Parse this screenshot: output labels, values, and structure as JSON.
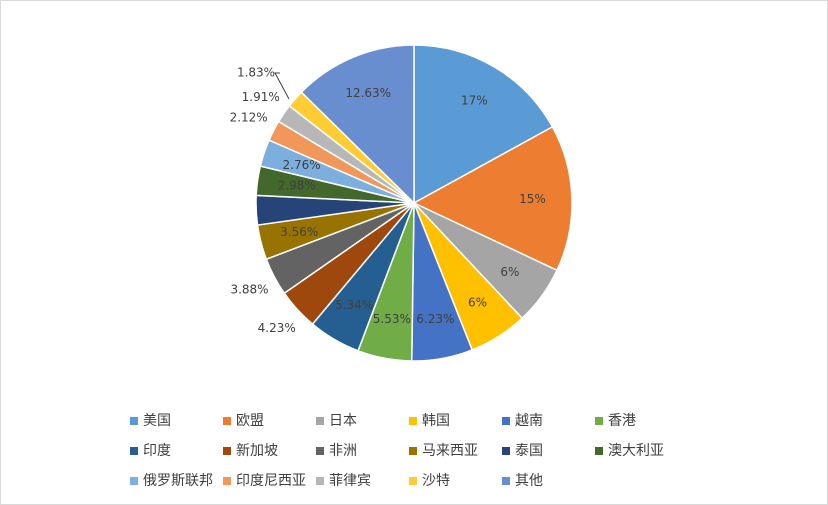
{
  "chart_data": {
    "type": "pie",
    "categories": [
      "美国",
      "欧盟",
      "日本",
      "韩国",
      "越南",
      "香港",
      "印度",
      "新加坡",
      "非洲",
      "马来西亚",
      "泰国",
      "澳大利亚",
      "俄罗斯联邦",
      "印度尼西亚",
      "菲律宾",
      "沙特",
      "其他"
    ],
    "values": [
      17,
      15,
      6,
      6,
      6.23,
      5.53,
      5.34,
      4.23,
      3.88,
      3.56,
      3,
      2.98,
      2.76,
      2.12,
      1.91,
      1.83,
      12.63
    ],
    "value_labels": [
      "17%",
      "15%",
      "6%",
      "6%",
      "6.23%",
      "5.53%",
      "5.34%",
      "4.23%",
      "3.88%",
      "3.56%",
      null,
      "2.98%",
      "2.76%",
      "2.12%",
      "1.91%",
      "1.83%",
      "12.63%"
    ],
    "colors": [
      "#5b9bd5",
      "#ed7d31",
      "#a5a5a5",
      "#ffc000",
      "#4472c4",
      "#70ad47",
      "#255e91",
      "#9e480e",
      "#636363",
      "#997300",
      "#264478",
      "#43682b",
      "#7cafdd",
      "#f1975a",
      "#b7b7b7",
      "#ffcd33",
      "#698ed0"
    ],
    "legend": "bottom"
  }
}
